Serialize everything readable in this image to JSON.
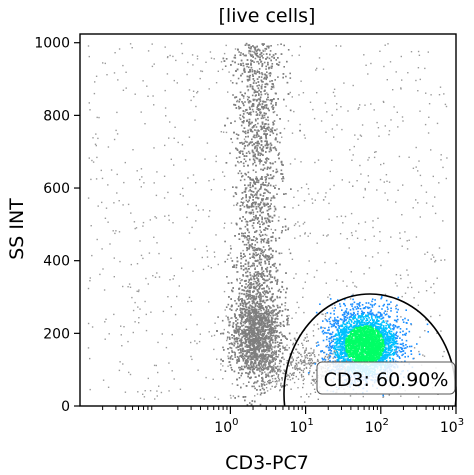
{
  "chart_data": {
    "type": "scatter",
    "title": "[live cells]",
    "xlabel": "CD3-PC7",
    "ylabel": "SS INT",
    "x_scale": "log",
    "x_range": [
      0.01,
      1000
    ],
    "y_range": [
      0,
      1024
    ],
    "x_ticks": [
      {
        "value": 1,
        "base": "10",
        "exp": "0"
      },
      {
        "value": 10,
        "base": "10",
        "exp": "1"
      },
      {
        "value": 100,
        "base": "10",
        "exp": "2"
      },
      {
        "value": 1000,
        "base": "10",
        "exp": "3"
      }
    ],
    "y_ticks": [
      {
        "value": 0,
        "label": "0"
      },
      {
        "value": 200,
        "label": "200"
      },
      {
        "value": 400,
        "label": "400"
      },
      {
        "value": 600,
        "label": "600"
      },
      {
        "value": 800,
        "label": "800"
      },
      {
        "value": 1000,
        "label": "1000"
      }
    ],
    "populations": [
      {
        "group": "CD3-negative",
        "color": "#7f7f7f",
        "x_center": 2.2,
        "y_range": [
          80,
          1000
        ]
      },
      {
        "group": "CD3-positive",
        "colors": [
          "#00ff66",
          "#00c0ff",
          "#1e90ff"
        ],
        "x_center": 60,
        "y_center": 180
      }
    ],
    "gate": {
      "label": "CD3: 60.90%",
      "shape": "ellipse",
      "edge_color": "#000000"
    }
  }
}
